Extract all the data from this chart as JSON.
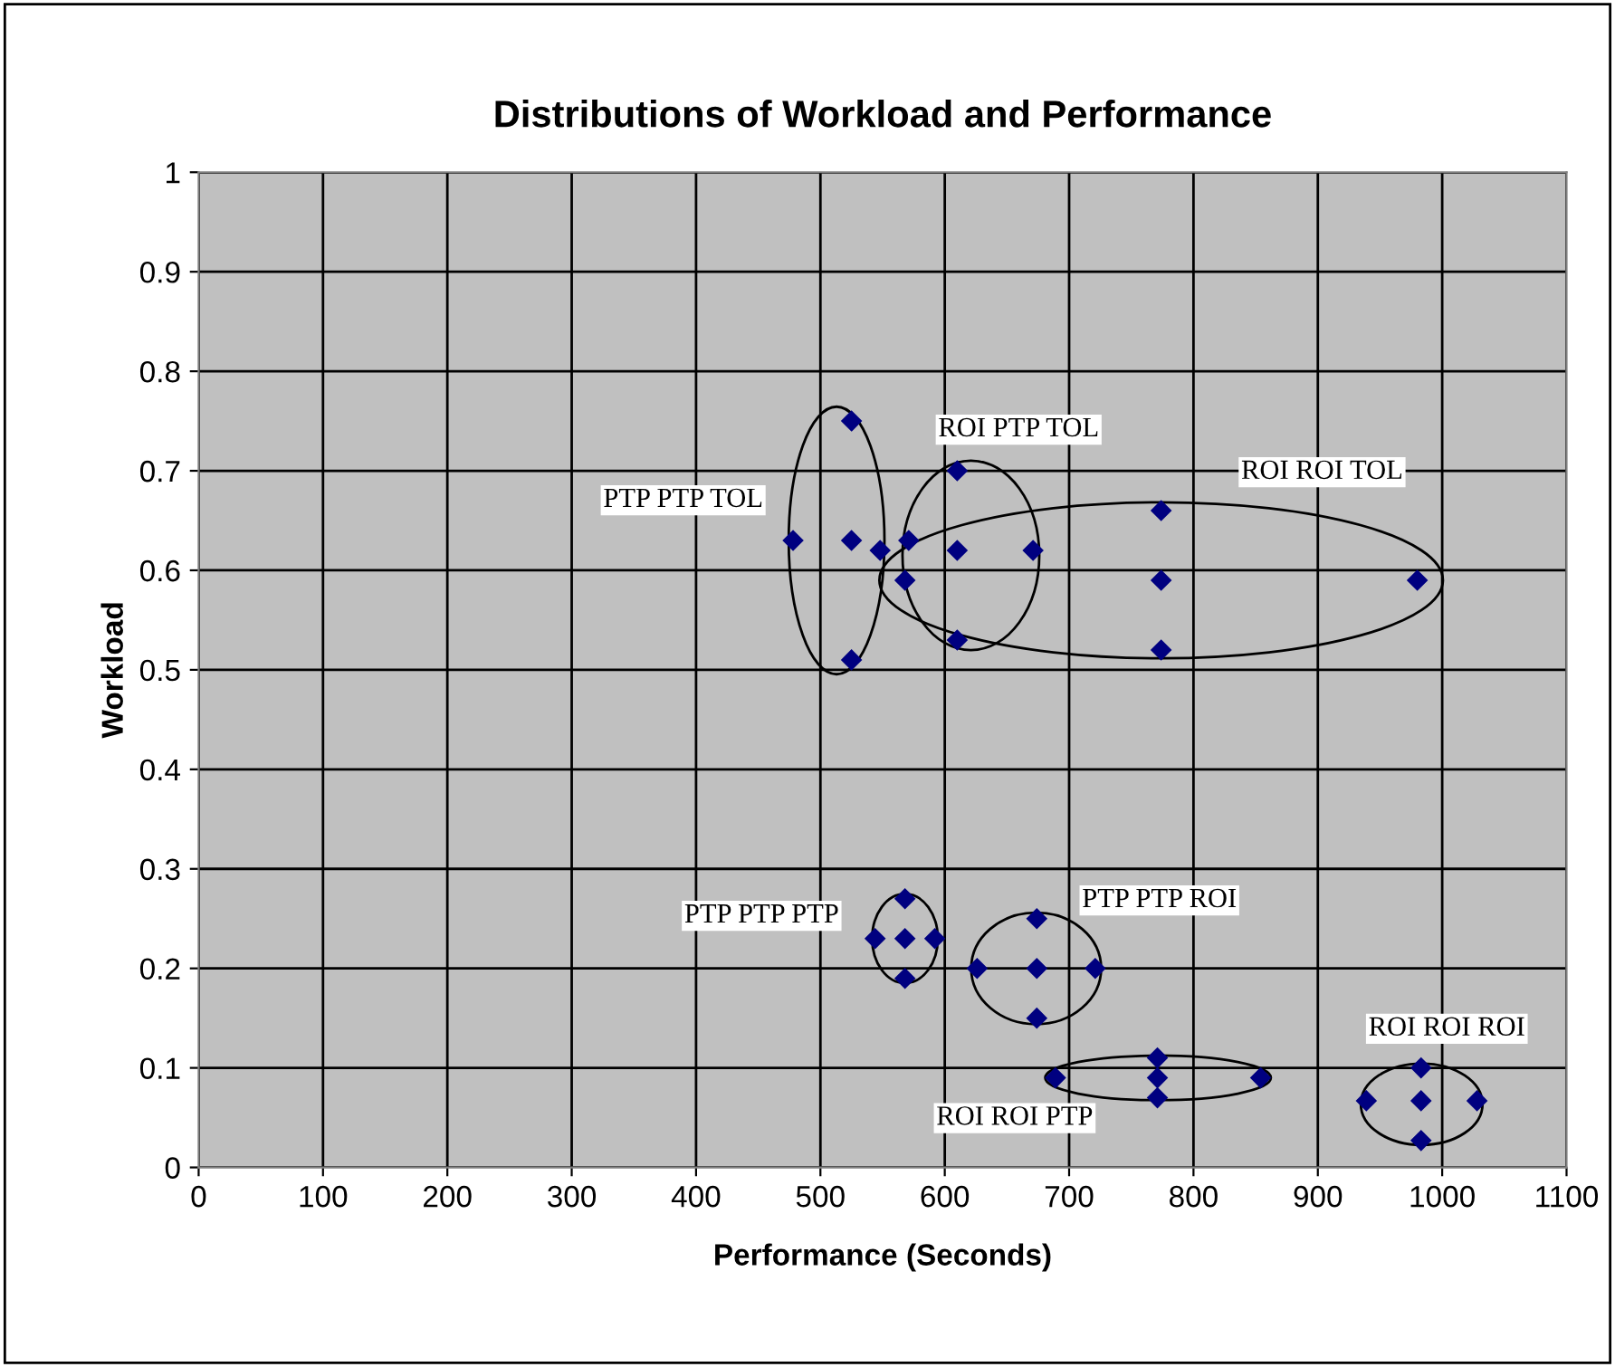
{
  "chart_data": {
    "type": "scatter",
    "title": "Distributions of Workload and Performance",
    "xlabel": "Performance (Seconds)",
    "ylabel": "Workload",
    "xlim": [
      0,
      1100
    ],
    "xticks": [
      0,
      100,
      200,
      300,
      400,
      500,
      600,
      700,
      800,
      900,
      1000,
      1100
    ],
    "ylim": [
      0,
      1
    ],
    "yticks": [
      0,
      0.1,
      0.2,
      0.3,
      0.4,
      0.5,
      0.6,
      0.7,
      0.8,
      0.9,
      1
    ],
    "grid": true,
    "marker": "diamond",
    "series": [
      {
        "name": "PTP PTP TOL",
        "color": "#000080",
        "x": [
          525,
          478,
          525,
          548,
          525
        ],
        "values": [
          0.75,
          0.63,
          0.63,
          0.62,
          0.51
        ]
      },
      {
        "name": "ROI PTP TOL",
        "color": "#000080",
        "x": [
          610,
          571,
          610,
          671,
          610
        ],
        "values": [
          0.7,
          0.63,
          0.62,
          0.62,
          0.53
        ]
      },
      {
        "name": "ROI ROI TOL",
        "color": "#000080",
        "x": [
          568,
          774,
          774,
          774,
          980
        ],
        "values": [
          0.59,
          0.66,
          0.59,
          0.52,
          0.59
        ]
      },
      {
        "name": "PTP PTP PTP",
        "color": "#000080",
        "x": [
          568,
          544,
          568,
          592,
          568
        ],
        "values": [
          0.27,
          0.23,
          0.23,
          0.23,
          0.19
        ]
      },
      {
        "name": "PTP PTP ROI",
        "color": "#000080",
        "x": [
          674,
          626,
          674,
          721,
          674
        ],
        "values": [
          0.25,
          0.2,
          0.2,
          0.2,
          0.15
        ]
      },
      {
        "name": "ROI ROI PTP",
        "color": "#000080",
        "x": [
          689,
          771,
          771,
          771,
          854
        ],
        "values": [
          0.09,
          0.11,
          0.09,
          0.07,
          0.09
        ]
      },
      {
        "name": "ROI ROI ROI",
        "color": "#000080",
        "x": [
          983,
          939,
          983,
          1028,
          983
        ],
        "values": [
          0.1,
          0.067,
          0.067,
          0.067,
          0.027
        ]
      }
    ]
  }
}
